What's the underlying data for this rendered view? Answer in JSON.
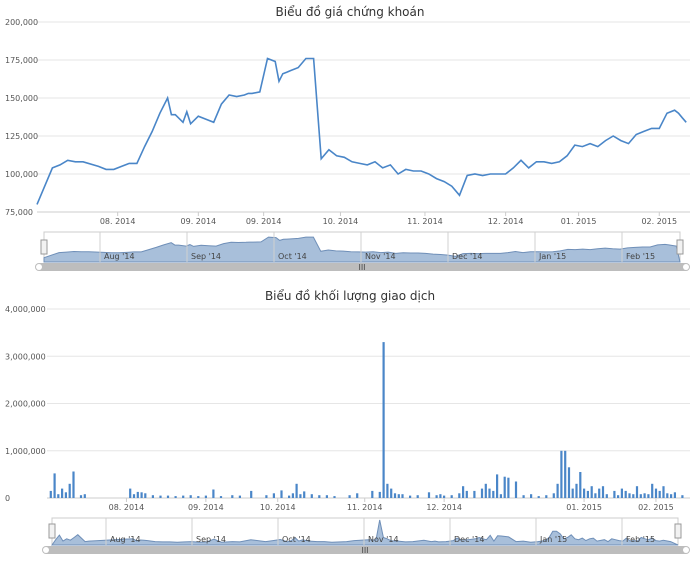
{
  "colors": {
    "series": "#4a86c8",
    "grid": "#e6e6e6",
    "navigator_fill": "#a8bfda",
    "navigator_line": "#6f8fb8",
    "scrollbar": "#bdbdbd",
    "scrollbar_thumb": "#8a8a8a"
  },
  "chart_data": [
    {
      "type": "line",
      "title": "Biểu đồ giá chứng khoán",
      "xlabel": "",
      "ylabel": "",
      "ylim": [
        75000,
        200000
      ],
      "y_ticks": [
        "75,000",
        "100,000",
        "125,000",
        "150,000",
        "175,000",
        "200,000"
      ],
      "x_ticks": [
        "08. 2014",
        "09. 2014",
        "09. 2014",
        "10. 2014",
        "11. 2014",
        "12. 2014",
        "01. 2015",
        "02. 2015"
      ],
      "navigator_labels": [
        "Aug '14",
        "Sep '14",
        "Oct '14",
        "Nov '14",
        "Dec '14",
        "Jan '15",
        "Feb '15"
      ],
      "grid": true,
      "legend": "none",
      "x_range": [
        0,
        170
      ],
      "x_tick_positions": [
        21,
        42,
        59,
        79,
        101,
        122,
        141,
        162
      ],
      "series": [
        {
          "x": [
            0,
            4,
            6,
            8,
            10,
            12,
            16,
            18,
            20,
            22,
            24,
            26,
            28,
            30,
            32,
            34,
            35,
            36,
            38,
            39,
            40,
            42,
            44,
            46,
            48,
            50,
            52,
            54,
            55,
            56,
            58,
            60,
            62,
            63,
            64,
            65,
            66,
            68,
            70,
            72,
            74,
            76,
            78,
            80,
            82,
            84,
            86,
            88,
            90,
            92,
            94,
            96,
            98,
            100,
            102,
            104,
            106,
            108,
            110,
            112,
            114,
            116,
            118,
            120,
            122,
            124,
            126,
            128,
            130,
            132,
            134,
            136,
            138,
            140,
            142,
            144,
            146,
            148,
            150,
            152,
            154,
            156,
            158,
            160,
            162,
            164,
            166,
            167,
            168,
            169
          ],
          "values": [
            80000,
            104000,
            106000,
            109000,
            108000,
            108000,
            105000,
            103000,
            103000,
            105000,
            107000,
            107000,
            118000,
            128000,
            140000,
            150000,
            139000,
            139000,
            134000,
            141000,
            133000,
            138000,
            136000,
            134000,
            146000,
            152000,
            151000,
            152000,
            153000,
            153000,
            154000,
            176000,
            174000,
            161000,
            166000,
            167000,
            168000,
            170000,
            176000,
            176000,
            110000,
            116000,
            112000,
            111000,
            108000,
            107000,
            106000,
            108000,
            104000,
            106000,
            100000,
            103000,
            102000,
            102000,
            100000,
            97000,
            95000,
            92000,
            86000,
            99000,
            100000,
            99000,
            100000,
            100000,
            100000,
            104000,
            109000,
            104000,
            108000,
            108000,
            107000,
            108000,
            112000,
            119000,
            118000,
            120000,
            118000,
            122000,
            125000,
            122000,
            120000,
            126000,
            128000,
            130000,
            130000,
            140000,
            142000,
            140000,
            137000,
            134000
          ]
        }
      ]
    },
    {
      "type": "bar",
      "title": "Biểu đồ khối lượng giao dịch",
      "xlabel": "",
      "ylabel": "",
      "ylim": [
        0,
        4000000
      ],
      "y_ticks": [
        "0",
        "1,000,000",
        "2,000,000",
        "3,000,000",
        "4,000,000"
      ],
      "x_ticks": [
        "08. 2014",
        "09. 2014",
        "10. 2014",
        "11. 2014",
        "12. 2014",
        "01. 2015",
        "02. 2015"
      ],
      "navigator_labels": [
        "Aug '14",
        "Sep '14",
        "Oct '14",
        "Nov '14",
        "Dec '14",
        "Jan '15",
        "Feb '15"
      ],
      "grid": true,
      "legend": "none",
      "x_range": [
        0,
        170
      ],
      "x_tick_positions": [
        21,
        42,
        61,
        84,
        105,
        142,
        161
      ],
      "series": [
        {
          "x": [
            1,
            2,
            3,
            4,
            5,
            6,
            7,
            9,
            10,
            22,
            23,
            24,
            25,
            26,
            28,
            30,
            32,
            34,
            36,
            38,
            40,
            42,
            44,
            46,
            49,
            51,
            54,
            58,
            60,
            62,
            64,
            65,
            66,
            67,
            68,
            70,
            72,
            74,
            76,
            80,
            82,
            86,
            88,
            89,
            90,
            91,
            92,
            93,
            94,
            96,
            98,
            101,
            103,
            104,
            105,
            107,
            109,
            110,
            111,
            113,
            115,
            116,
            117,
            118,
            119,
            120,
            121,
            122,
            124,
            126,
            128,
            130,
            132,
            134,
            135,
            136,
            137,
            138,
            139,
            140,
            141,
            142,
            143,
            144,
            145,
            146,
            147,
            148,
            150,
            151,
            152,
            153,
            154,
            155,
            156,
            157,
            158,
            159,
            160,
            161,
            162,
            163,
            164,
            165,
            166,
            168
          ],
          "values": [
            150000,
            520000,
            80000,
            200000,
            120000,
            300000,
            560000,
            60000,
            80000,
            200000,
            80000,
            130000,
            120000,
            100000,
            60000,
            50000,
            50000,
            40000,
            50000,
            60000,
            40000,
            50000,
            180000,
            40000,
            60000,
            50000,
            150000,
            60000,
            100000,
            160000,
            50000,
            100000,
            300000,
            80000,
            140000,
            80000,
            60000,
            60000,
            40000,
            60000,
            100000,
            150000,
            130000,
            3300000,
            300000,
            200000,
            100000,
            80000,
            80000,
            50000,
            60000,
            120000,
            60000,
            80000,
            50000,
            60000,
            100000,
            250000,
            150000,
            150000,
            200000,
            300000,
            200000,
            150000,
            500000,
            80000,
            450000,
            430000,
            350000,
            60000,
            80000,
            40000,
            60000,
            100000,
            300000,
            1000000,
            1000000,
            650000,
            200000,
            300000,
            550000,
            200000,
            150000,
            250000,
            100000,
            200000,
            250000,
            80000,
            150000,
            60000,
            200000,
            150000,
            100000,
            80000,
            250000,
            80000,
            100000,
            80000,
            300000,
            200000,
            150000,
            250000,
            100000,
            80000,
            120000,
            60000
          ]
        }
      ]
    }
  ]
}
